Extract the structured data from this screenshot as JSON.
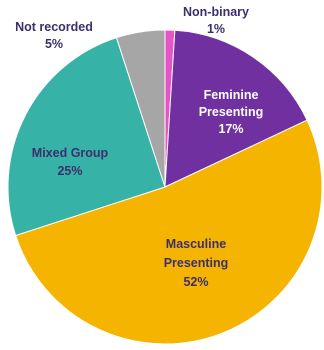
{
  "chart_data": {
    "type": "pie",
    "slices": [
      {
        "label": "Non-binary",
        "value": 1,
        "display": "1%",
        "color": "#e754c8",
        "text_color": "#3d2f6e"
      },
      {
        "label": "Feminine Presenting",
        "label_lines": [
          "Feminine",
          "Presenting"
        ],
        "value": 17,
        "display": "17%",
        "color": "#7030a0",
        "text_color": "#ffffff"
      },
      {
        "label": "Masculine Presenting",
        "label_lines": [
          "Masculine",
          "Presenting"
        ],
        "value": 52,
        "display": "52%",
        "color": "#f5b400",
        "text_color": "#3d2f6e"
      },
      {
        "label": "Mixed Group",
        "value": 25,
        "display": "25%",
        "color": "#36b3a6",
        "text_color": "#3d2f6e"
      },
      {
        "label": "Not recorded",
        "value": 5,
        "display": "5%",
        "color": "#a6a6a6",
        "text_color": "#3d2f6e"
      }
    ]
  }
}
